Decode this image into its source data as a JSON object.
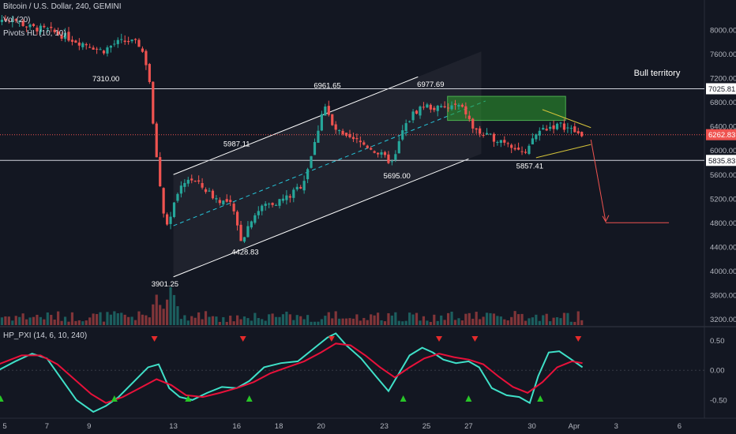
{
  "header": {
    "symbol": "Bitcoin / U.S. Dollar, 240, GEMINI",
    "volume": "Vol (20)",
    "pivots": "Pivots HL (10, 10)"
  },
  "oscillator": {
    "label": "HP_PXI (14, 6, 10, 240)"
  },
  "colors": {
    "background": "#131722",
    "up": "#26a69a",
    "down": "#ef5350",
    "osc_fast": "#3fe0c8",
    "osc_slow": "#e8113a",
    "channel": "#ffffff",
    "zone": "#2e9e2e",
    "wedge": "#d4c33a",
    "signal_up": "#28c628",
    "signal_down": "#e52b2b"
  },
  "chart_data": [
    {
      "type": "candlestick",
      "title": "Bitcoin / U.S. Dollar, 240, GEMINI",
      "ylim": [
        3100,
        8500
      ],
      "price_ticks": [
        "8000.00",
        "7600.00",
        "7200.00",
        "6800.00",
        "6400.00",
        "6000.00",
        "5600.00",
        "5200.00",
        "4800.00",
        "4400.00",
        "4000.00",
        "3600.00",
        "3200.00"
      ],
      "price_tick_values": [
        8000,
        7600,
        7200,
        6800,
        6400,
        6000,
        5600,
        5200,
        4800,
        4400,
        4000,
        3600,
        3200
      ],
      "x_ticks": [
        "5",
        "7",
        "9",
        "13",
        "16",
        "18",
        "20",
        "23",
        "25",
        "27",
        "30",
        "Apr",
        "3",
        "6"
      ],
      "x_tick_days": [
        5,
        7,
        9,
        13,
        16,
        18,
        20,
        23,
        25,
        27,
        30,
        32,
        34,
        37
      ],
      "axis_labels": [
        {
          "text": "7025.81",
          "value": 7025.81
        },
        {
          "text": "6262.83",
          "value": 6262.83
        },
        {
          "text": "5835.83",
          "value": 5835.83
        }
      ],
      "levels": [
        7025.81,
        5835.83
      ],
      "current_price": 6262.83,
      "pivot_labels": [
        {
          "text": "7310.00",
          "day": 9.8,
          "price": 7310
        },
        {
          "text": "5987.11",
          "day": 16.0,
          "price": 5987.11
        },
        {
          "text": "6961.65",
          "day": 20.3,
          "price": 6961.65
        },
        {
          "text": "6977.69",
          "day": 25.2,
          "price": 6977.69
        },
        {
          "text": "5695.00",
          "day": 23.6,
          "price": 5695
        },
        {
          "text": "4428.83",
          "day": 16.4,
          "price": 4428.83
        },
        {
          "text": "3901.25",
          "day": 12.6,
          "price": 3901.25
        },
        {
          "text": "5857.41",
          "day": 29.9,
          "price": 5857.41
        }
      ],
      "annotation": "Bull territory",
      "price_path": [
        [
          4.7,
          8150
        ],
        [
          5.5,
          8200
        ],
        [
          6.3,
          8050
        ],
        [
          7.2,
          8000
        ],
        [
          8.0,
          7900
        ],
        [
          8.7,
          7800
        ],
        [
          9.2,
          7750
        ],
        [
          9.8,
          7650
        ],
        [
          10.4,
          7780
        ],
        [
          11.0,
          7820
        ],
        [
          11.6,
          7750
        ],
        [
          12.0,
          7300
        ],
        [
          12.2,
          6400
        ],
        [
          12.5,
          5500
        ],
        [
          12.8,
          4700
        ],
        [
          13.0,
          4900
        ],
        [
          13.4,
          5300
        ],
        [
          13.9,
          5550
        ],
        [
          14.5,
          5400
        ],
        [
          15.2,
          5200
        ],
        [
          15.9,
          5100
        ],
        [
          16.4,
          4500
        ],
        [
          16.9,
          4900
        ],
        [
          17.5,
          5100
        ],
        [
          18.1,
          5150
        ],
        [
          18.7,
          5250
        ],
        [
          19.3,
          5450
        ],
        [
          19.9,
          6150
        ],
        [
          20.3,
          6800
        ],
        [
          20.7,
          6400
        ],
        [
          21.3,
          6200
        ],
        [
          21.9,
          6150
        ],
        [
          22.5,
          6050
        ],
        [
          23.1,
          5900
        ],
        [
          23.6,
          5780
        ],
        [
          24.0,
          6300
        ],
        [
          24.5,
          6600
        ],
        [
          25.0,
          6750
        ],
        [
          25.6,
          6700
        ],
        [
          26.1,
          6700
        ],
        [
          26.6,
          6750
        ],
        [
          27.0,
          6650
        ],
        [
          27.4,
          6350
        ],
        [
          27.9,
          6250
        ],
        [
          28.4,
          6200
        ],
        [
          29.0,
          6150
        ],
        [
          29.6,
          6000
        ],
        [
          29.9,
          5900
        ],
        [
          30.2,
          6200
        ],
        [
          30.6,
          6350
        ],
        [
          31.1,
          6400
        ],
        [
          31.6,
          6420
        ],
        [
          32.0,
          6350
        ],
        [
          32.4,
          6270
        ]
      ],
      "volume_ylim": [
        0,
        1
      ],
      "oscillator": {
        "ylim": [
          -0.78,
          0.68
        ],
        "ticks": [
          "0.50",
          "0.00",
          "-0.50"
        ],
        "tick_values": [
          0.5,
          0,
          -0.5
        ],
        "fast": [
          [
            4.7,
            0.0
          ],
          [
            5.5,
            0.15
          ],
          [
            6.3,
            0.28
          ],
          [
            7.0,
            0.2
          ],
          [
            7.6,
            -0.1
          ],
          [
            8.4,
            -0.5
          ],
          [
            9.2,
            -0.7
          ],
          [
            9.8,
            -0.6
          ],
          [
            10.4,
            -0.45
          ],
          [
            11.1,
            -0.2
          ],
          [
            11.8,
            0.05
          ],
          [
            12.3,
            0.1
          ],
          [
            12.8,
            -0.3
          ],
          [
            13.3,
            -0.45
          ],
          [
            13.9,
            -0.5
          ],
          [
            14.6,
            -0.38
          ],
          [
            15.3,
            -0.28
          ],
          [
            16.0,
            -0.3
          ],
          [
            16.6,
            -0.18
          ],
          [
            17.3,
            0.05
          ],
          [
            18.1,
            0.12
          ],
          [
            18.9,
            0.15
          ],
          [
            19.6,
            0.35
          ],
          [
            20.3,
            0.55
          ],
          [
            20.7,
            0.62
          ],
          [
            21.2,
            0.42
          ],
          [
            21.9,
            0.2
          ],
          [
            22.6,
            -0.1
          ],
          [
            23.2,
            -0.35
          ],
          [
            23.7,
            -0.05
          ],
          [
            24.2,
            0.25
          ],
          [
            24.8,
            0.38
          ],
          [
            25.3,
            0.3
          ],
          [
            25.8,
            0.18
          ],
          [
            26.4,
            0.12
          ],
          [
            27.0,
            0.15
          ],
          [
            27.5,
            0.05
          ],
          [
            28.1,
            -0.3
          ],
          [
            28.8,
            -0.42
          ],
          [
            29.4,
            -0.45
          ],
          [
            29.9,
            -0.55
          ],
          [
            30.3,
            -0.1
          ],
          [
            30.8,
            0.3
          ],
          [
            31.3,
            0.32
          ],
          [
            31.8,
            0.2
          ],
          [
            32.2,
            0.1
          ],
          [
            32.4,
            0.05
          ]
        ],
        "slow": [
          [
            4.7,
            0.1
          ],
          [
            5.8,
            0.25
          ],
          [
            6.7,
            0.25
          ],
          [
            7.5,
            0.1
          ],
          [
            8.3,
            -0.15
          ],
          [
            9.1,
            -0.4
          ],
          [
            9.8,
            -0.55
          ],
          [
            10.6,
            -0.45
          ],
          [
            11.4,
            -0.3
          ],
          [
            12.2,
            -0.15
          ],
          [
            12.9,
            -0.25
          ],
          [
            13.6,
            -0.42
          ],
          [
            14.4,
            -0.45
          ],
          [
            15.2,
            -0.38
          ],
          [
            16.0,
            -0.3
          ],
          [
            16.8,
            -0.2
          ],
          [
            17.6,
            -0.05
          ],
          [
            18.4,
            0.05
          ],
          [
            19.2,
            0.15
          ],
          [
            20.0,
            0.3
          ],
          [
            20.7,
            0.45
          ],
          [
            21.4,
            0.42
          ],
          [
            22.1,
            0.25
          ],
          [
            22.8,
            0.05
          ],
          [
            23.5,
            -0.12
          ],
          [
            24.2,
            0.05
          ],
          [
            24.9,
            0.2
          ],
          [
            25.6,
            0.28
          ],
          [
            26.3,
            0.22
          ],
          [
            27.0,
            0.18
          ],
          [
            27.7,
            0.1
          ],
          [
            28.4,
            -0.1
          ],
          [
            29.1,
            -0.28
          ],
          [
            29.8,
            -0.38
          ],
          [
            30.5,
            -0.2
          ],
          [
            31.2,
            0.05
          ],
          [
            31.9,
            0.15
          ],
          [
            32.4,
            0.12
          ]
        ],
        "signals_up": [
          4.8,
          10.2,
          13.7,
          16.6,
          23.9,
          27.0,
          30.4
        ],
        "signals_down": [
          12.1,
          16.3,
          20.5,
          25.6,
          27.3,
          32.2
        ]
      }
    }
  ]
}
